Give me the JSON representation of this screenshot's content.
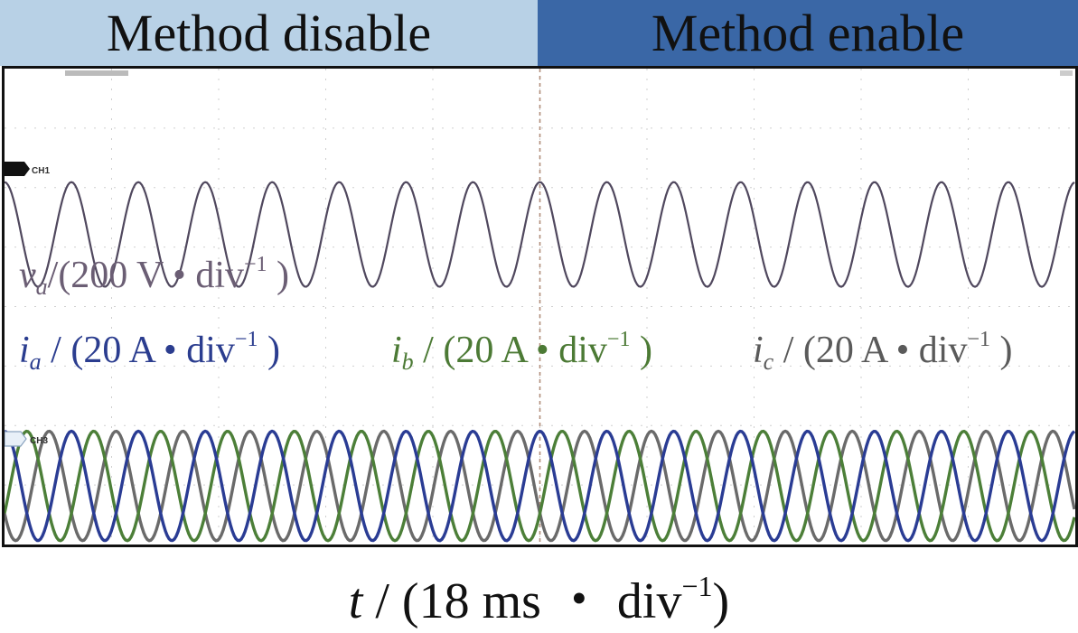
{
  "banners": {
    "left": {
      "text": "Method disable",
      "color": "#b8d1e6"
    },
    "right": {
      "text": "Method enable",
      "color": "#3a67a6"
    }
  },
  "markers": {
    "ch1": "CH1",
    "ch3": "CH3"
  },
  "labels": {
    "va": {
      "sym": "v",
      "sub": "a",
      "pre": "/(200 V • div",
      "sup": "−1",
      "post": " )",
      "color": "#6b5e74"
    },
    "ia": {
      "sym": "i",
      "sub": "a",
      "pre": " / (20 A • div",
      "sup": "−1",
      "post": " )",
      "color": "#2b3d8f"
    },
    "ib": {
      "sym": "i",
      "sub": "b",
      "pre": " / (20 A • div",
      "sup": "−1",
      "post": " )",
      "color": "#4c7a35"
    },
    "ic": {
      "sym": "i",
      "sub": "c",
      "pre": " / (20 A • div",
      "sup": "−1",
      "post": " )",
      "color": "#5a5a5a"
    }
  },
  "x_axis": {
    "sym": "t",
    "pre": " / (18 ms ・ div",
    "sup": "−1",
    "post": ")"
  },
  "chart_data": {
    "type": "line",
    "grid": {
      "x_divisions": 10,
      "y_divisions": 8
    },
    "x_scale": "18 ms/div",
    "event_division": 5,
    "periods_per_division": 1.6,
    "series": [
      {
        "name": "va",
        "amplitude_div": 0.88,
        "phase_deg": 90,
        "color": "#50485e",
        "width": 2.2
      },
      {
        "name": "ia",
        "amplitude_div": 0.92,
        "phase_deg": 90,
        "color": "#2a3c94",
        "width": 3.4
      },
      {
        "name": "ib",
        "amplitude_div": 0.92,
        "phase_deg": -30,
        "color": "#4c7f38",
        "width": 3.4
      },
      {
        "name": "ic",
        "amplitude_div": 0.92,
        "phase_deg": 210,
        "color": "#6a6a6a",
        "width": 3.4
      }
    ]
  }
}
